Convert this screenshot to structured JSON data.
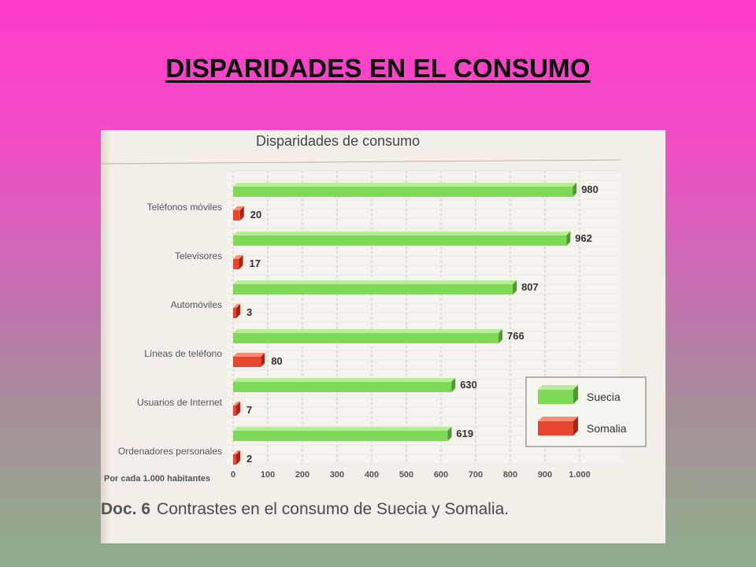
{
  "slide": {
    "title": "DISPARIDADES EN EL CONSUMO"
  },
  "figure": {
    "caption_doc": "Doc. 6",
    "caption_text": "Contrastes en el consumo de Suecia y Somalia."
  },
  "colors": {
    "suecia": "#7ed957",
    "suecia_dark": "#4f9a2f",
    "suecia_top": "#b6ee95",
    "somalia": "#e8452e",
    "somalia_dark": "#a82414",
    "somalia_top": "#ff8a72"
  },
  "chart_data": {
    "type": "bar",
    "orientation": "horizontal",
    "title": "Disparidades de consumo",
    "unit_label": "Por cada 1.000 habitantes",
    "categories": [
      "Teléfonos móviles",
      "Televisores",
      "Automóviles",
      "Líneas de teléfono",
      "Usuarios de Internet",
      "Ordenadores personales"
    ],
    "series": [
      {
        "name": "Suecia",
        "values": [
          980,
          962,
          807,
          766,
          630,
          619
        ]
      },
      {
        "name": "Somalia",
        "values": [
          20,
          17,
          3,
          80,
          7,
          2
        ]
      }
    ],
    "value_labels": {
      "Suecia": [
        "980",
        "962",
        "807",
        "766",
        "630",
        "619"
      ],
      "Somalia": [
        "20",
        "17",
        "3",
        "80",
        "7",
        "2"
      ]
    },
    "xlim": [
      0,
      1000
    ],
    "xticks": [
      "0",
      "100",
      "200",
      "300",
      "400",
      "500",
      "600",
      "700",
      "800",
      "900",
      "1.000"
    ],
    "grid": true,
    "legend_position": "bottom-right"
  }
}
